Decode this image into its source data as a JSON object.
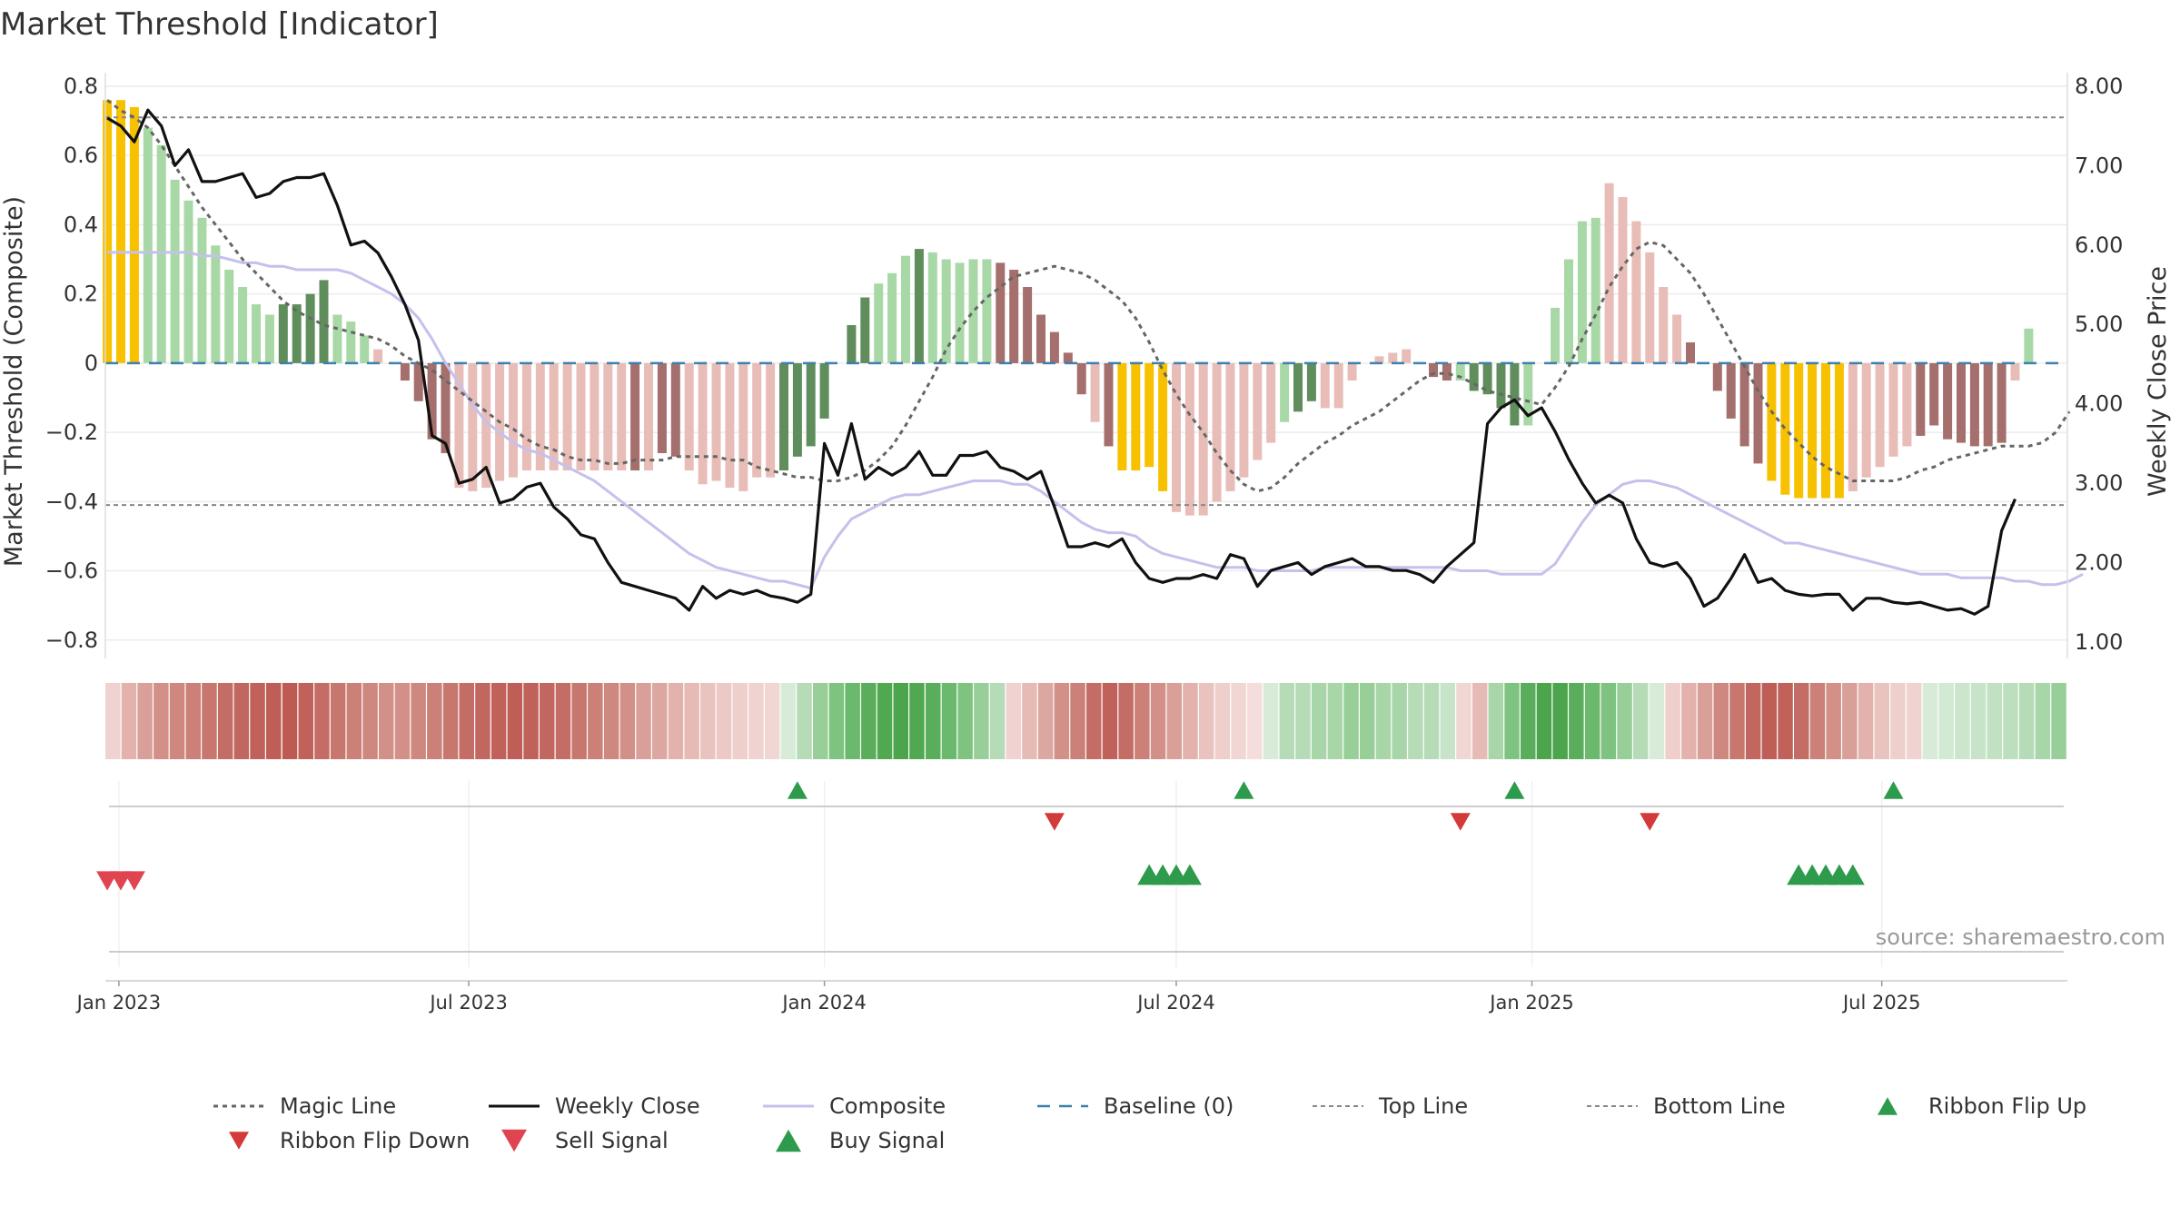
{
  "chart_data": {
    "title": "Market Threshold [Indicator]",
    "type": "bar",
    "y_left_label": "Market Threshold (Composite)",
    "y_right_label": "Weekly Close Price",
    "y_left_range": [
      -0.84,
      0.8
    ],
    "y_right_range": [
      0.85,
      8.0
    ],
    "y_left_ticks": [
      {
        "v": 0.8,
        "t": "0.8"
      },
      {
        "v": 0.6,
        "t": "0.6"
      },
      {
        "v": 0.4,
        "t": "0.4"
      },
      {
        "v": 0.2,
        "t": "0.2"
      },
      {
        "v": 0,
        "t": "0"
      },
      {
        "v": -0.2,
        "t": "−0.2"
      },
      {
        "v": -0.4,
        "t": "−0.4"
      },
      {
        "v": -0.6,
        "t": "−0.6"
      },
      {
        "v": -0.8,
        "t": "−0.8"
      }
    ],
    "y_right_ticks": [
      {
        "v": 8,
        "t": "8.00"
      },
      {
        "v": 7,
        "t": "7.00"
      },
      {
        "v": 6,
        "t": "6.00"
      },
      {
        "v": 5,
        "t": "5.00"
      },
      {
        "v": 4,
        "t": "4.00"
      },
      {
        "v": 3,
        "t": "3.00"
      },
      {
        "v": 2,
        "t": "2.00"
      },
      {
        "v": 1,
        "t": "1.00"
      }
    ],
    "x_ticks": [
      {
        "date": "2023-01-01",
        "label": "Jan 2023"
      },
      {
        "date": "2023-07-01",
        "label": "Jul 2023"
      },
      {
        "date": "2024-01-01",
        "label": "Jan 2024"
      },
      {
        "date": "2024-07-01",
        "label": "Jul 2024"
      },
      {
        "date": "2025-01-01",
        "label": "Jan 2025"
      },
      {
        "date": "2025-07-01",
        "label": "Jul 2025"
      }
    ],
    "x_range": [
      "2022-12-25",
      "2025-10-05"
    ],
    "first_week": "2022-12-26",
    "week_step_days": 7,
    "top_line": 0.71,
    "bottom_line": -0.41,
    "baseline": 0,
    "composite_bars": [
      0.76,
      0.76,
      0.74,
      0.68,
      0.63,
      0.53,
      0.47,
      0.42,
      0.34,
      0.27,
      0.22,
      0.17,
      0.14,
      0.17,
      0.17,
      0.2,
      0.24,
      0.14,
      0.12,
      0.08,
      0.04,
      0,
      -0.05,
      -0.11,
      -0.22,
      -0.26,
      -0.36,
      -0.37,
      -0.36,
      -0.34,
      -0.33,
      -0.31,
      -0.31,
      -0.31,
      -0.31,
      -0.31,
      -0.31,
      -0.31,
      -0.31,
      -0.31,
      -0.31,
      -0.26,
      -0.27,
      -0.31,
      -0.35,
      -0.34,
      -0.36,
      -0.37,
      -0.33,
      -0.33,
      -0.31,
      -0.27,
      -0.24,
      -0.16,
      0,
      0.11,
      0.19,
      0.23,
      0.26,
      0.31,
      0.33,
      0.32,
      0.3,
      0.29,
      0.3,
      0.3,
      0.29,
      0.27,
      0.22,
      0.14,
      0.09,
      0.03,
      -0.09,
      -0.17,
      -0.24,
      -0.31,
      -0.31,
      -0.3,
      -0.37,
      -0.43,
      -0.44,
      -0.44,
      -0.4,
      -0.37,
      -0.33,
      -0.28,
      -0.23,
      -0.17,
      -0.14,
      -0.11,
      -0.13,
      -0.13,
      -0.05,
      0,
      0.02,
      0.03,
      0.04,
      0,
      -0.04,
      -0.05,
      -0.05,
      -0.08,
      -0.09,
      -0.13,
      -0.18,
      -0.18,
      0,
      0.16,
      0.3,
      0.41,
      0.42,
      0.52,
      0.48,
      0.41,
      0.32,
      0.22,
      0.14,
      0.06,
      0,
      -0.08,
      -0.16,
      -0.24,
      -0.29,
      -0.34,
      -0.38,
      -0.39,
      -0.39,
      -0.39,
      -0.39,
      -0.37,
      -0.33,
      -0.3,
      -0.27,
      -0.24,
      -0.21,
      -0.18,
      -0.22,
      -0.23,
      -0.24,
      -0.24,
      -0.23,
      -0.05,
      0.1
    ],
    "bar_style_codes": "YYYLLLLLLLLLLDDDDLLLPPRRRRPPPPPPPPPPPPPRPRRPPPPPPPDDDDDDDLLLDLLLLLRRRRRRRPRYYYYPPPPPPPPLDDPPPPPPPPRRLDDDDLLLLLLPPPPPPRRRRRRYYYYYYPPPPPRRRRRRRPL",
    "magic_line": [
      0.76,
      0.73,
      0.71,
      0.68,
      0.63,
      0.57,
      0.51,
      0.45,
      0.4,
      0.35,
      0.3,
      0.26,
      0.22,
      0.18,
      0.15,
      0.13,
      0.11,
      0.1,
      0.09,
      0.08,
      0.07,
      0.05,
      0.02,
      0,
      -0.02,
      -0.05,
      -0.08,
      -0.11,
      -0.14,
      -0.17,
      -0.19,
      -0.22,
      -0.24,
      -0.25,
      -0.27,
      -0.28,
      -0.28,
      -0.29,
      -0.29,
      -0.28,
      -0.28,
      -0.28,
      -0.27,
      -0.27,
      -0.27,
      -0.27,
      -0.28,
      -0.28,
      -0.3,
      -0.31,
      -0.32,
      -0.33,
      -0.33,
      -0.34,
      -0.34,
      -0.33,
      -0.31,
      -0.28,
      -0.24,
      -0.18,
      -0.11,
      -0.04,
      0.04,
      0.1,
      0.15,
      0.19,
      0.22,
      0.25,
      0.26,
      0.27,
      0.28,
      0.27,
      0.26,
      0.24,
      0.21,
      0.18,
      0.13,
      0.06,
      -0.02,
      -0.09,
      -0.15,
      -0.2,
      -0.26,
      -0.31,
      -0.35,
      -0.37,
      -0.36,
      -0.33,
      -0.29,
      -0.26,
      -0.23,
      -0.21,
      -0.18,
      -0.16,
      -0.14,
      -0.11,
      -0.08,
      -0.05,
      -0.03,
      -0.03,
      -0.04,
      -0.06,
      -0.08,
      -0.09,
      -0.1,
      -0.11,
      -0.12,
      -0.07,
      -0.01,
      0.07,
      0.14,
      0.22,
      0.28,
      0.33,
      0.35,
      0.34,
      0.3,
      0.26,
      0.2,
      0.13,
      0.06,
      -0.01,
      -0.08,
      -0.14,
      -0.19,
      -0.23,
      -0.27,
      -0.3,
      -0.32,
      -0.34,
      -0.34,
      -0.34,
      -0.34,
      -0.33,
      -0.31,
      -0.3,
      -0.28,
      -0.27,
      -0.26,
      -0.25,
      -0.24,
      -0.24,
      -0.24,
      -0.23,
      -0.2,
      -0.14
    ],
    "composite_line": [
      0.32,
      0.32,
      0.32,
      0.32,
      0.32,
      0.32,
      0.32,
      0.31,
      0.31,
      0.3,
      0.29,
      0.29,
      0.28,
      0.28,
      0.27,
      0.27,
      0.27,
      0.27,
      0.26,
      0.24,
      0.22,
      0.2,
      0.17,
      0.13,
      0.07,
      0,
      -0.06,
      -0.12,
      -0.17,
      -0.2,
      -0.23,
      -0.25,
      -0.26,
      -0.28,
      -0.3,
      -0.32,
      -0.34,
      -0.37,
      -0.4,
      -0.43,
      -0.46,
      -0.49,
      -0.52,
      -0.55,
      -0.57,
      -0.59,
      -0.6,
      -0.61,
      -0.62,
      -0.63,
      -0.63,
      -0.64,
      -0.65,
      -0.56,
      -0.5,
      -0.45,
      -0.43,
      -0.41,
      -0.39,
      -0.38,
      -0.38,
      -0.37,
      -0.36,
      -0.35,
      -0.34,
      -0.34,
      -0.34,
      -0.35,
      -0.35,
      -0.37,
      -0.4,
      -0.43,
      -0.46,
      -0.48,
      -0.49,
      -0.49,
      -0.5,
      -0.53,
      -0.55,
      -0.56,
      -0.57,
      -0.58,
      -0.59,
      -0.59,
      -0.59,
      -0.6,
      -0.6,
      -0.6,
      -0.6,
      -0.6,
      -0.59,
      -0.59,
      -0.59,
      -0.59,
      -0.59,
      -0.59,
      -0.59,
      -0.59,
      -0.59,
      -0.59,
      -0.6,
      -0.6,
      -0.6,
      -0.61,
      -0.61,
      -0.61,
      -0.61,
      -0.58,
      -0.52,
      -0.46,
      -0.41,
      -0.38,
      -0.35,
      -0.34,
      -0.34,
      -0.35,
      -0.36,
      -0.38,
      -0.4,
      -0.42,
      -0.44,
      -0.46,
      -0.48,
      -0.5,
      -0.52,
      -0.52,
      -0.53,
      -0.54,
      -0.55,
      -0.56,
      -0.57,
      -0.58,
      -0.59,
      -0.6,
      -0.61,
      -0.61,
      -0.61,
      -0.62,
      -0.62,
      -0.62,
      -0.62,
      -0.63,
      -0.63,
      -0.64,
      -0.64,
      -0.63,
      -0.61
    ],
    "weekly_close": [
      7.6,
      7.5,
      7.3,
      7.7,
      7.5,
      7.0,
      7.2,
      6.8,
      6.8,
      6.85,
      6.9,
      6.6,
      6.65,
      6.8,
      6.85,
      6.85,
      6.9,
      6.5,
      6.0,
      6.05,
      5.9,
      5.6,
      5.25,
      4.8,
      3.6,
      3.5,
      3.0,
      3.05,
      3.2,
      2.75,
      2.8,
      2.95,
      3.0,
      2.7,
      2.55,
      2.35,
      2.3,
      2.0,
      1.75,
      1.7,
      1.65,
      1.6,
      1.55,
      1.4,
      1.7,
      1.55,
      1.65,
      1.6,
      1.65,
      1.58,
      1.55,
      1.5,
      1.6,
      3.5,
      3.1,
      3.75,
      3.05,
      3.2,
      3.1,
      3.2,
      3.4,
      3.1,
      3.1,
      3.35,
      3.35,
      3.4,
      3.2,
      3.15,
      3.05,
      3.15,
      2.7,
      2.2,
      2.2,
      2.25,
      2.2,
      2.3,
      2.0,
      1.8,
      1.75,
      1.8,
      1.8,
      1.85,
      1.8,
      2.1,
      2.05,
      1.7,
      1.9,
      1.95,
      2.0,
      1.85,
      1.95,
      2.0,
      2.05,
      1.95,
      1.95,
      1.9,
      1.9,
      1.85,
      1.75,
      1.95,
      2.1,
      2.25,
      3.75,
      3.95,
      4.05,
      3.85,
      3.95,
      3.65,
      3.3,
      3.0,
      2.75,
      2.85,
      2.75,
      2.3,
      2.0,
      1.95,
      2.0,
      1.8,
      1.45,
      1.55,
      1.8,
      2.1,
      1.75,
      1.8,
      1.65,
      1.6,
      1.58,
      1.6,
      1.6,
      1.4,
      1.55,
      1.55,
      1.5,
      1.48,
      1.5,
      1.45,
      1.4,
      1.42,
      1.35,
      1.45,
      2.4,
      2.8
    ],
    "ribbon_colors": [
      "#f0d3d0",
      "#e3b2ad",
      "#d9a09a",
      "#d29089",
      "#cf8880",
      "#cb8078",
      "#c8776f",
      "#c46d66",
      "#c2675f",
      "#c0625a",
      "#be5e56",
      "#bd5b53",
      "#c0625a",
      "#c46d66",
      "#c8776f",
      "#cb8078",
      "#cf8880",
      "#d29089",
      "#d29089",
      "#cf8880",
      "#cb8078",
      "#c8776f",
      "#c46d66",
      "#c2675f",
      "#c0625a",
      "#be5e56",
      "#c0625a",
      "#c2675f",
      "#c46d66",
      "#c8776f",
      "#cb8078",
      "#cf8880",
      "#d29089",
      "#d9a09a",
      "#dca7a1",
      "#e3b2ad",
      "#e6bbb6",
      "#e9c3be",
      "#ecc9c5",
      "#eecfcb",
      "#f0d3d0",
      "#f1d7d4",
      "#d8ebd8",
      "#b5dcb6",
      "#98cf99",
      "#7fc380",
      "#6bb96c",
      "#5aae5b",
      "#50a851",
      "#4ca54d",
      "#50a851",
      "#5aae5b",
      "#6bb96c",
      "#7fc380",
      "#98cf99",
      "#b5dcb6",
      "#f0d3d0",
      "#e6bbb6",
      "#dca7a1",
      "#d29089",
      "#cb8078",
      "#c46d66",
      "#c0625a",
      "#c46d66",
      "#cb8078",
      "#d29089",
      "#d9a09a",
      "#e3b2ad",
      "#e9c3be",
      "#eecfcb",
      "#f1d7d4",
      "#f4ddda",
      "#d8ebd8",
      "#b5dcb6",
      "#b5dcb6",
      "#a8d6a9",
      "#a8d6a9",
      "#98cf99",
      "#98cf99",
      "#a8d6a9",
      "#a8d6a9",
      "#b5dcb6",
      "#b5dcb6",
      "#c7e4c8",
      "#f1d7d4",
      "#e6bbb6",
      "#a8d6a9",
      "#7fc380",
      "#5aae5b",
      "#4ca54d",
      "#4ca54d",
      "#5aae5b",
      "#6bb96c",
      "#7fc380",
      "#98cf99",
      "#b5dcb6",
      "#d8ebd8",
      "#eecfcb",
      "#e3b2ad",
      "#d9a09a",
      "#cf8880",
      "#c8776f",
      "#c2675f",
      "#be5e56",
      "#c0625a",
      "#c46d66",
      "#cb8078",
      "#d29089",
      "#d9a09a",
      "#e3b2ad",
      "#e9c3be",
      "#eecfcb",
      "#f0d3d0",
      "#d8ebd8",
      "#d2e9d2",
      "#cce6cd",
      "#c7e4c8",
      "#c2e1c3",
      "#bcdfbd",
      "#b5dcb6",
      "#a8d6a9",
      "#98cf99"
    ],
    "signals_top_up": [
      "2023-12-18",
      "2024-08-05",
      "2024-12-23",
      "2025-07-07"
    ],
    "signals_top_down": [
      "2024-04-29",
      "2024-11-25",
      "2025-03-03"
    ],
    "signals_bottom_down": [
      "2022-12-26",
      "2023-01-02",
      "2023-01-09"
    ],
    "signals_bottom_up": [
      "2024-06-17",
      "2024-06-24",
      "2024-07-01",
      "2024-07-08",
      "2025-05-19",
      "2025-05-26",
      "2025-06-02",
      "2025-06-09",
      "2025-06-16"
    ],
    "colors": {
      "gold": "#f7c100",
      "light_green": "#a8d8a6",
      "dark_green": "#5f8e5c",
      "pink": "#e8bdb8",
      "dark_red": "#a46f6c",
      "weekly_close": "#111111",
      "composite": "#c6c0ec",
      "magic": "#666666",
      "baseline": "#3d7fad",
      "buy": "#2d9b4b",
      "sell": "#e04450",
      "flip_down": "#d33a3a"
    },
    "legend": [
      {
        "label": "Magic Line",
        "key": "magic"
      },
      {
        "label": "Weekly Close",
        "key": "close"
      },
      {
        "label": "Composite",
        "key": "composite"
      },
      {
        "label": "Baseline (0)",
        "key": "baseline"
      },
      {
        "label": "Top Line",
        "key": "topline"
      },
      {
        "label": "Bottom Line",
        "key": "bottomline"
      },
      {
        "label": "Ribbon Flip Up",
        "key": "flipup"
      },
      {
        "label": "Ribbon Flip Down",
        "key": "flipdown"
      },
      {
        "label": "Sell Signal",
        "key": "sell"
      },
      {
        "label": "Buy Signal",
        "key": "buy"
      }
    ],
    "source": "source: sharemaestro.com"
  }
}
